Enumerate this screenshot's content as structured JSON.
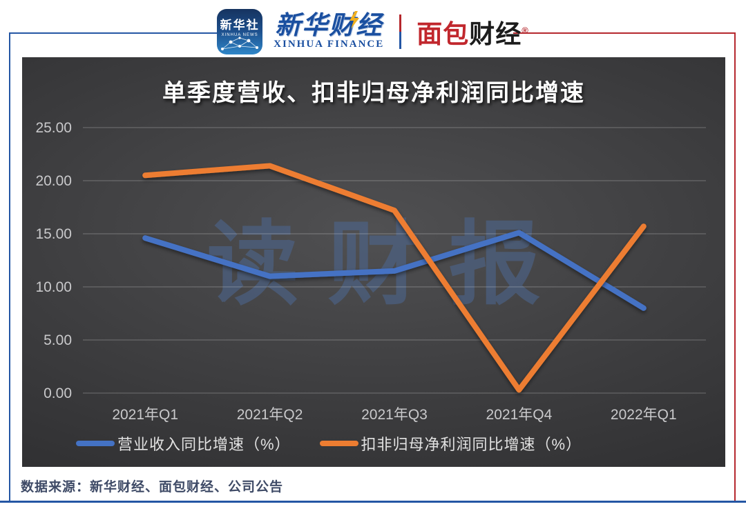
{
  "header": {
    "xinhua_app": {
      "title": "新华社",
      "subtitle": "XINHUA NEWS"
    },
    "xinhua_finance": {
      "name_cn": "新华财经",
      "name_en": "XINHUA FINANCE"
    },
    "mianbao_finance": {
      "name_cn_red": "面包",
      "name_cn_dark": "财经",
      "registered_mark": "®"
    }
  },
  "chart_data": {
    "type": "line",
    "title": "单季度营收、扣非归母净利润同比增速",
    "categories": [
      "2021年Q1",
      "2021年Q2",
      "2021年Q3",
      "2021年Q4",
      "2022年Q1"
    ],
    "series": [
      {
        "name": "营业收入同比增速（%）",
        "color": "#4472c4",
        "values": [
          14.6,
          11.0,
          11.5,
          15.1,
          8.0
        ]
      },
      {
        "name": "扣非归母净利润同比增速（%）",
        "color": "#ed7d31",
        "values": [
          20.5,
          21.4,
          17.2,
          0.3,
          15.7
        ]
      }
    ],
    "ylim": [
      0,
      25
    ],
    "yticks": [
      0,
      5,
      10,
      15,
      20,
      25
    ],
    "ytick_labels": [
      "0.00",
      "5.00",
      "10.00",
      "15.00",
      "20.00",
      "25.00"
    ],
    "grid": true,
    "legend_position": "bottom-center",
    "watermark": "读财报"
  },
  "footer": {
    "source": "数据来源：新华财经、面包财经、公司公告"
  },
  "colors": {
    "frame_blue": "#2456a4",
    "frame_red": "#b5272d",
    "series_blue": "#4472c4",
    "series_orange": "#ed7d31",
    "chart_bg_center": "#505052",
    "chart_bg_edge": "#262628",
    "axis_text": "#c9c9cb",
    "watermark": "rgba(77,103,147,0.55)"
  }
}
